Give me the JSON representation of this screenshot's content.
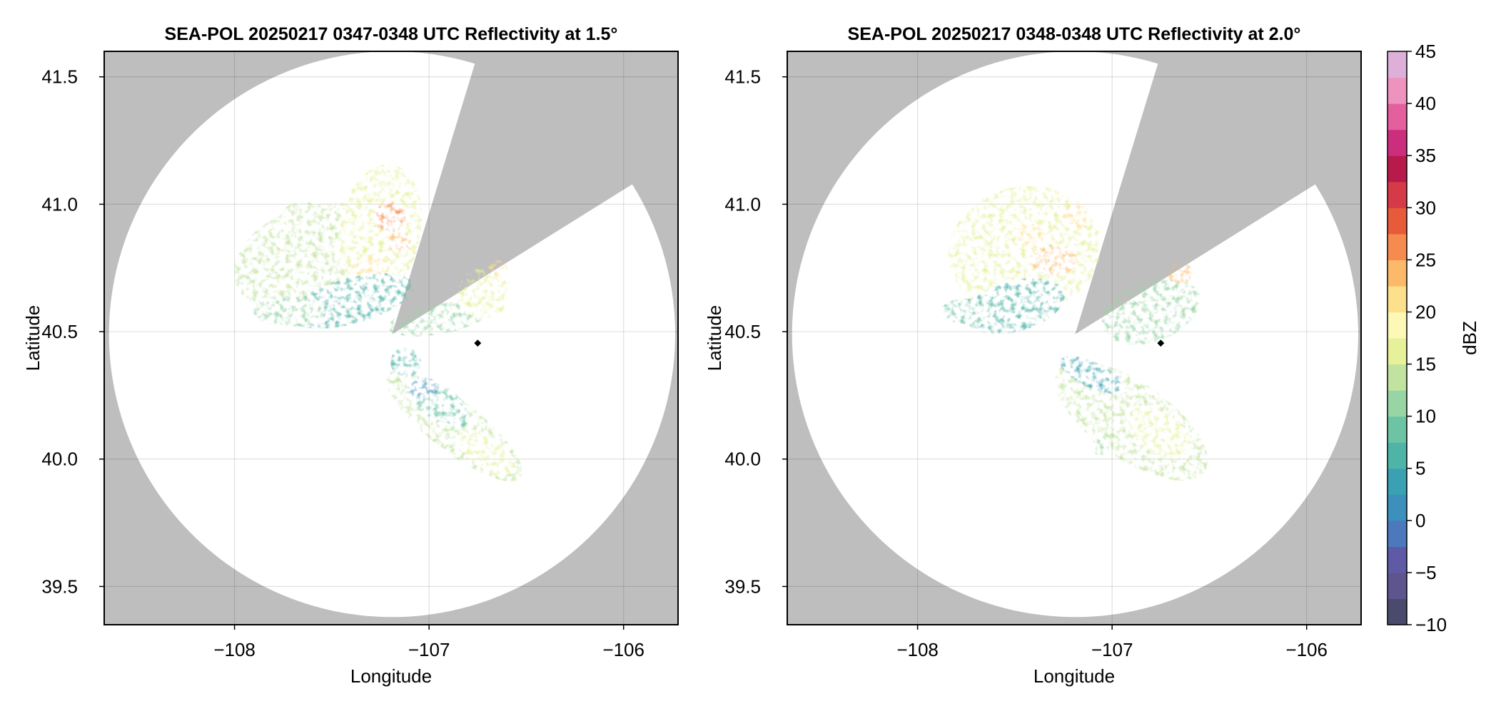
{
  "chart_data": [
    {
      "type": "heatmap",
      "title": "SEA-POL 20250217 0347-0348 UTC Reflectivity at 1.5°",
      "xlabel": "Longitude",
      "ylabel": "Latitude",
      "xlim": [
        -108.67,
        -105.72
      ],
      "ylim": [
        39.35,
        41.6
      ],
      "xticks": [
        -108,
        -107,
        -106
      ],
      "xtick_labels": [
        "−108",
        "−107",
        "−106"
      ],
      "yticks": [
        39.5,
        40.0,
        40.5,
        41.0,
        41.5
      ],
      "ytick_labels": [
        "39.5",
        "40.0",
        "40.5",
        "41.0",
        "41.5"
      ],
      "grid": true,
      "background_color": "#bebebe",
      "radar_center": [
        -107.19,
        40.49
      ],
      "radar_range_deg_lat": 1.11,
      "blocked_sectors_deg_from_north": [
        [
          17,
          58
        ]
      ],
      "site_marker": [
        -106.75,
        40.455
      ],
      "echoes": [
        {
          "x": -107.55,
          "y": 40.78,
          "rx": 0.35,
          "ry": 0.22,
          "rot": -12,
          "dbz": 14
        },
        {
          "x": -107.25,
          "y": 40.9,
          "rx": 0.16,
          "ry": 0.26,
          "rot": 10,
          "dbz": 16
        },
        {
          "x": -107.2,
          "y": 40.95,
          "rx": 0.06,
          "ry": 0.06,
          "rot": 0,
          "dbz": 25
        },
        {
          "x": -107.3,
          "y": 40.75,
          "rx": 0.07,
          "ry": 0.05,
          "rot": 0,
          "dbz": 22
        },
        {
          "x": -107.15,
          "y": 40.85,
          "rx": 0.05,
          "ry": 0.04,
          "rot": 0,
          "dbz": 24
        },
        {
          "x": -107.4,
          "y": 40.62,
          "rx": 0.25,
          "ry": 0.09,
          "rot": -15,
          "dbz": 6
        },
        {
          "x": -107.72,
          "y": 40.58,
          "rx": 0.14,
          "ry": 0.06,
          "rot": 0,
          "dbz": 10
        },
        {
          "x": -107.65,
          "y": 40.92,
          "rx": 0.1,
          "ry": 0.09,
          "rot": 0,
          "dbz": 13
        },
        {
          "x": -106.95,
          "y": 40.55,
          "rx": 0.2,
          "ry": 0.06,
          "rot": -10,
          "dbz": 12
        },
        {
          "x": -106.72,
          "y": 40.65,
          "rx": 0.1,
          "ry": 0.1,
          "rot": 0,
          "dbz": 15
        },
        {
          "x": -106.65,
          "y": 40.75,
          "rx": 0.04,
          "ry": 0.03,
          "rot": 0,
          "dbz": 22
        },
        {
          "x": -106.87,
          "y": 40.13,
          "rx": 0.33,
          "ry": 0.1,
          "rot": 38,
          "dbz": 14
        },
        {
          "x": -106.95,
          "y": 40.22,
          "rx": 0.14,
          "ry": 0.07,
          "rot": 35,
          "dbz": 9
        },
        {
          "x": -107.03,
          "y": 40.28,
          "rx": 0.06,
          "ry": 0.04,
          "rot": 0,
          "dbz": 2
        },
        {
          "x": -106.7,
          "y": 40.02,
          "rx": 0.12,
          "ry": 0.06,
          "rot": 35,
          "dbz": 17
        },
        {
          "x": -107.12,
          "y": 40.38,
          "rx": 0.06,
          "ry": 0.06,
          "rot": 0,
          "dbz": 6
        }
      ]
    },
    {
      "type": "heatmap",
      "title": "SEA-POL 20250217 0348-0348 UTC Reflectivity at 2.0°",
      "xlabel": "Longitude",
      "ylabel": "Latitude",
      "xlim": [
        -108.67,
        -105.72
      ],
      "ylim": [
        39.35,
        41.6
      ],
      "xticks": [
        -108,
        -107,
        -106
      ],
      "xtick_labels": [
        "−108",
        "−107",
        "−106"
      ],
      "yticks": [
        39.5,
        40.0,
        40.5,
        41.0,
        41.5
      ],
      "ytick_labels": [
        "39.5",
        "40.0",
        "40.5",
        "41.0",
        "41.5"
      ],
      "grid": true,
      "background_color": "#bebebe",
      "radar_center": [
        -107.19,
        40.49
      ],
      "radar_range_deg_lat": 1.11,
      "blocked_sectors_deg_from_north": [
        [
          17,
          58
        ]
      ],
      "site_marker": [
        -106.75,
        40.455
      ],
      "echoes": [
        {
          "x": -107.45,
          "y": 40.82,
          "rx": 0.3,
          "ry": 0.25,
          "rot": -10,
          "dbz": 15
        },
        {
          "x": -107.3,
          "y": 40.78,
          "rx": 0.09,
          "ry": 0.06,
          "rot": 0,
          "dbz": 23
        },
        {
          "x": -107.42,
          "y": 40.88,
          "rx": 0.06,
          "ry": 0.05,
          "rot": 0,
          "dbz": 21
        },
        {
          "x": -107.18,
          "y": 40.95,
          "rx": 0.06,
          "ry": 0.05,
          "rot": 0,
          "dbz": 22
        },
        {
          "x": -107.5,
          "y": 40.6,
          "rx": 0.2,
          "ry": 0.1,
          "rot": -15,
          "dbz": 7
        },
        {
          "x": -107.75,
          "y": 40.58,
          "rx": 0.1,
          "ry": 0.05,
          "rot": 0,
          "dbz": 9
        },
        {
          "x": -106.8,
          "y": 40.58,
          "rx": 0.2,
          "ry": 0.12,
          "rot": -20,
          "dbz": 12
        },
        {
          "x": -106.65,
          "y": 40.73,
          "rx": 0.05,
          "ry": 0.04,
          "rot": 0,
          "dbz": 24
        },
        {
          "x": -106.9,
          "y": 40.15,
          "rx": 0.35,
          "ry": 0.15,
          "rot": 35,
          "dbz": 14
        },
        {
          "x": -107.1,
          "y": 40.33,
          "rx": 0.14,
          "ry": 0.05,
          "rot": 25,
          "dbz": 4
        },
        {
          "x": -106.75,
          "y": 40.1,
          "rx": 0.14,
          "ry": 0.08,
          "rot": 35,
          "dbz": 17
        },
        {
          "x": -107.05,
          "y": 40.05,
          "rx": 0.04,
          "ry": 0.04,
          "rot": 0,
          "dbz": 10
        }
      ]
    }
  ],
  "colorbar": {
    "label": "dBZ",
    "min": -10,
    "max": 45,
    "step": 2.5,
    "ticks": [
      45,
      40,
      35,
      30,
      25,
      20,
      15,
      10,
      5,
      0,
      -5,
      -10
    ],
    "tick_labels": [
      "45",
      "40",
      "35",
      "30",
      "25",
      "20",
      "15",
      "10",
      "5",
      "0",
      "−5",
      "−10"
    ],
    "colors": [
      "#000000",
      "#12121a",
      "#242433",
      "#37364f",
      "#4a4a6c",
      "#5e548e",
      "#5e5aa5",
      "#4b79bc",
      "#3d8fbc",
      "#3aa1b2",
      "#4fb4a8",
      "#6cc4a4",
      "#98d5a4",
      "#c1e39f",
      "#e6f199",
      "#fdf8b6",
      "#fde08b",
      "#fdb96a",
      "#f78b4f",
      "#e85b3a",
      "#d63a48",
      "#b81a4b",
      "#cc2e7e",
      "#e35f9e",
      "#ee92be",
      "#dcb0d8",
      "#b088c0",
      "#8e60a2",
      "#6e3a85",
      "#4d1c64",
      "#2d0540"
    ]
  }
}
